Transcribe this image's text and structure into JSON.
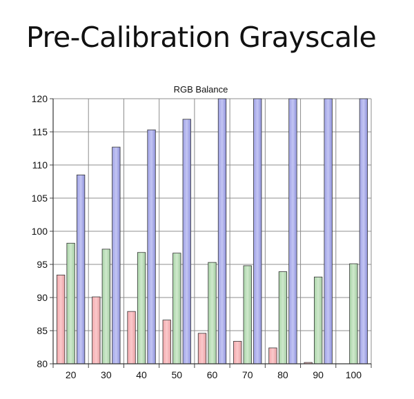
{
  "slide": {
    "title": "Pre-Calibration Grayscale"
  },
  "chart_data": {
    "type": "bar",
    "title": "RGB Balance",
    "xlabel": "",
    "ylabel": "",
    "categories": [
      "20",
      "30",
      "40",
      "50",
      "60",
      "70",
      "80",
      "90",
      "100"
    ],
    "ylim": [
      80,
      120
    ],
    "yticks": [
      80,
      85,
      90,
      95,
      100,
      105,
      110,
      115,
      120
    ],
    "grid": true,
    "legend": "none",
    "series": [
      {
        "color": "#f7b9bc",
        "values": [
          93.4,
          90.1,
          87.9,
          86.6,
          84.6,
          83.4,
          82.4,
          80.2,
          80.0
        ]
      },
      {
        "color": "#bfe0bd",
        "values": [
          98.2,
          97.3,
          96.8,
          96.7,
          95.3,
          94.8,
          93.9,
          93.1,
          95.1
        ]
      },
      {
        "color": "#b4b6ee",
        "values": [
          108.5,
          112.7,
          115.3,
          116.9,
          120,
          120,
          120,
          120,
          120
        ]
      }
    ]
  }
}
